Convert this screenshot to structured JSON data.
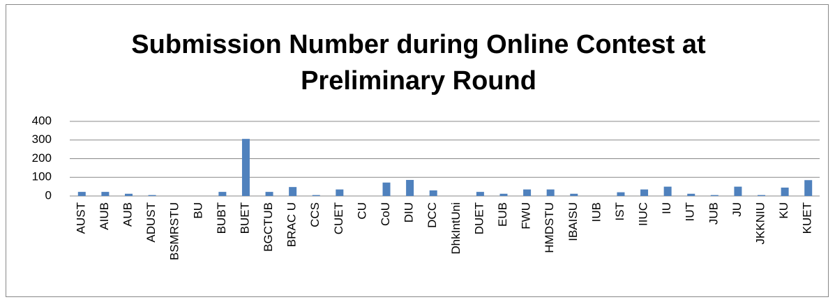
{
  "chart_data": {
    "type": "bar",
    "title": "Submission Number during Online Contest at Preliminary Round",
    "categories": [
      "AUST",
      "AIUB",
      "AUB",
      "ADUST",
      "BSMRSTU",
      "BU",
      "BUBT",
      "BUET",
      "BGCTUB",
      "BRAC U",
      "CCS",
      "CUET",
      "CU",
      "CoU",
      "DIU",
      "DCC",
      "DhkIntUni",
      "DUET",
      "EUB",
      "FWU",
      "HMDSTU",
      "IBAISU",
      "IUB",
      "IST",
      "IIUC",
      "IU",
      "IUT",
      "JUB",
      "JU",
      "JKKNIU",
      "KU",
      "KUET"
    ],
    "values": [
      22,
      22,
      12,
      5,
      0,
      0,
      22,
      306,
      22,
      48,
      5,
      35,
      0,
      72,
      86,
      30,
      0,
      22,
      12,
      35,
      35,
      12,
      0,
      20,
      35,
      50,
      12,
      5,
      50,
      5,
      45,
      85
    ],
    "color": "#4f81bd",
    "ylim": [
      0,
      400
    ],
    "yticks": [
      0,
      100,
      200,
      300,
      400
    ],
    "grid": true
  }
}
